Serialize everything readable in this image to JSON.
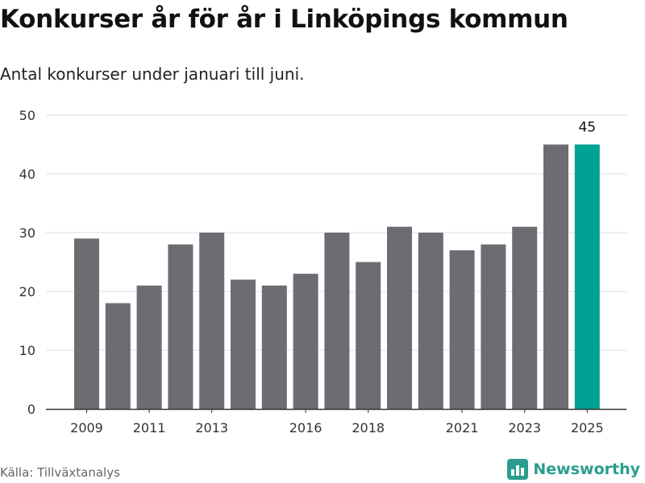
{
  "header": {
    "title": "Konkurser år för år i Linköpings kommun",
    "subtitle": "Antal konkurser under januari till juni."
  },
  "footer": {
    "source": "Källa: Tillväxtanalys",
    "brand": "Newsworthy",
    "brand_icon": "bar-chart-logo-icon"
  },
  "colors": {
    "bar": "#6d6c72",
    "highlight": "#00a294",
    "grid": "#dcdcdc",
    "axis": "#333333",
    "brand": "#2a9d8f"
  },
  "chart_data": {
    "type": "bar",
    "categories": [
      "2009",
      "2010",
      "2011",
      "2012",
      "2013",
      "2014",
      "2015",
      "2016",
      "2017",
      "2018",
      "2019",
      "2020",
      "2021",
      "2022",
      "2023",
      "2024",
      "2025"
    ],
    "values": [
      29,
      18,
      21,
      28,
      30,
      22,
      21,
      23,
      30,
      25,
      31,
      30,
      27,
      28,
      31,
      45,
      45
    ],
    "highlight_index": 16,
    "data_labels": [
      {
        "category": "2025",
        "text": "45"
      }
    ],
    "x_tick_labels": [
      "2009",
      "2011",
      "2013",
      "2016",
      "2018",
      "2021",
      "2023",
      "2025"
    ],
    "y_ticks": [
      0,
      10,
      20,
      30,
      40,
      50
    ],
    "ylim": [
      0,
      50
    ],
    "grid": "horizontal",
    "xlabel": "",
    "ylabel": ""
  }
}
